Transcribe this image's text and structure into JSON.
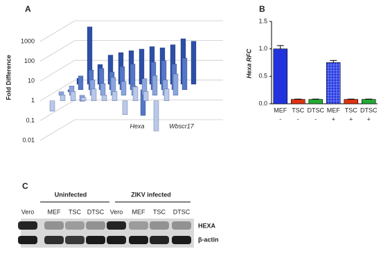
{
  "chart_data": [
    {
      "type": "bar3d",
      "panel_label": "A",
      "ylabel": "Fold Difference",
      "log_scale": true,
      "ylim": [
        0.01,
        1000
      ],
      "yticks": [
        0.01,
        0.1,
        1,
        10,
        100,
        1000
      ],
      "categories": [
        null,
        null,
        null,
        null,
        null,
        null,
        null,
        null,
        null,
        null,
        null,
        null
      ],
      "series": [
        {
          "color": "#b9c9ea",
          "values": [
            0.3,
            2,
            3,
            1.5,
            4,
            2,
            3,
            0.2,
            5,
            3,
            0.03,
            4
          ]
        },
        {
          "color": "#8aa5de",
          "values": [
            1.5,
            3,
            0.5,
            6,
            4,
            8,
            5,
            3,
            7,
            10,
            6,
            12
          ]
        },
        {
          "color": "#5577c8",
          "values": [
            0.8,
            5,
            10,
            12,
            8,
            15,
            20,
            0.05,
            25,
            30,
            20,
            40
          ]
        },
        {
          "color": "#2d4fa6",
          "values": [
            2,
            800,
            10,
            30,
            40,
            50,
            60,
            80,
            70,
            100,
            200,
            150
          ]
        }
      ],
      "annotations": [
        "Hexa",
        "Wbscr17"
      ]
    },
    {
      "type": "bar",
      "panel_label": "B",
      "ylabel": "Hexa RFC",
      "ylim": [
        0,
        1.5
      ],
      "yticks": [
        {
          "value": 0,
          "label": "0.0"
        },
        {
          "value": 0.5,
          "label": "0.5"
        },
        {
          "value": 1,
          "label": "1.0"
        },
        {
          "value": 1.5,
          "label": "1.5"
        }
      ],
      "categories": [
        "MEF",
        "TSC",
        "DTSC",
        "MEF",
        "TSC",
        "DTSC"
      ],
      "infection": [
        "-",
        "-",
        "-",
        "+",
        "+",
        "+"
      ],
      "values": [
        1.0,
        0.08,
        0.08,
        0.75,
        0.08,
        0.08
      ],
      "errors": [
        0.06,
        0.005,
        0.005,
        0.04,
        0.005,
        0.005
      ],
      "colors": [
        "#2233dd",
        "#dd3311",
        "#22aa33",
        "#2233dd",
        "#dd3311",
        "#22aa33"
      ],
      "hatched": [
        false,
        false,
        false,
        true,
        false,
        false
      ]
    }
  ],
  "blot": {
    "panel_label": "C",
    "groups": [
      "Uninfected",
      "ZIKV infected"
    ],
    "lanes": [
      "Vero",
      "MEF",
      "TSC",
      "DTSC",
      "Vero",
      "MEF",
      "TSC",
      "DTSC"
    ],
    "rows": [
      "HEXA",
      "β-actin"
    ]
  }
}
